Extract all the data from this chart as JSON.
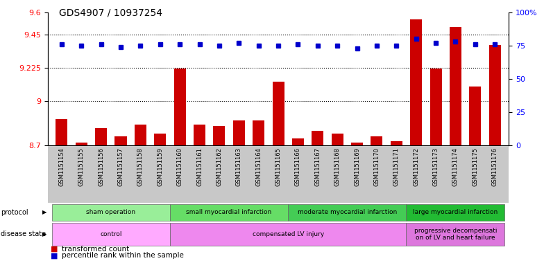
{
  "title": "GDS4907 / 10937254",
  "samples": [
    "GSM1151154",
    "GSM1151155",
    "GSM1151156",
    "GSM1151157",
    "GSM1151158",
    "GSM1151159",
    "GSM1151160",
    "GSM1151161",
    "GSM1151162",
    "GSM1151163",
    "GSM1151164",
    "GSM1151165",
    "GSM1151166",
    "GSM1151167",
    "GSM1151168",
    "GSM1151169",
    "GSM1151170",
    "GSM1151171",
    "GSM1151172",
    "GSM1151173",
    "GSM1151174",
    "GSM1151175",
    "GSM1151176"
  ],
  "red_values": [
    8.88,
    8.72,
    8.82,
    8.76,
    8.84,
    8.78,
    9.22,
    8.84,
    8.83,
    8.87,
    8.87,
    9.13,
    8.75,
    8.8,
    8.78,
    8.72,
    8.76,
    8.73,
    9.55,
    9.22,
    9.5,
    9.1,
    9.38
  ],
  "blue_values": [
    76,
    75,
    76,
    74,
    75,
    76,
    76,
    76,
    75,
    77,
    75,
    75,
    76,
    75,
    75,
    73,
    75,
    75,
    80,
    77,
    78,
    76,
    76
  ],
  "ylim_left": [
    8.7,
    9.6
  ],
  "ylim_right": [
    0,
    100
  ],
  "yticks_left": [
    8.7,
    9.0,
    9.225,
    9.45,
    9.6
  ],
  "yticks_right": [
    0,
    25,
    50,
    75,
    100
  ],
  "ytick_labels_left": [
    "8.7",
    "9",
    "9.225",
    "9.45",
    "9.6"
  ],
  "ytick_labels_right": [
    "0",
    "25",
    "50",
    "75",
    "100%"
  ],
  "hlines": [
    9.45,
    9.225,
    9.0
  ],
  "bar_color": "#cc0000",
  "dot_color": "#0000cc",
  "xtick_bg_color": "#c8c8c8",
  "protocol_groups": [
    {
      "label": "sham operation",
      "start": 0,
      "end": 5,
      "color": "#99ee99"
    },
    {
      "label": "small myocardial infarction",
      "start": 6,
      "end": 11,
      "color": "#66dd66"
    },
    {
      "label": "moderate myocardial infarction",
      "start": 12,
      "end": 17,
      "color": "#44cc55"
    },
    {
      "label": "large myocardial infarction",
      "start": 18,
      "end": 22,
      "color": "#22bb33"
    }
  ],
  "disease_groups": [
    {
      "label": "control",
      "start": 0,
      "end": 5,
      "color": "#ffaaff"
    },
    {
      "label": "compensated LV injury",
      "start": 6,
      "end": 17,
      "color": "#ee88ee"
    },
    {
      "label": "progressive decompensati\non of LV and heart failure",
      "start": 18,
      "end": 22,
      "color": "#dd77dd"
    }
  ],
  "legend_items": [
    "transformed count",
    "percentile rank within the sample"
  ],
  "legend_colors": [
    "#cc0000",
    "#0000cc"
  ]
}
